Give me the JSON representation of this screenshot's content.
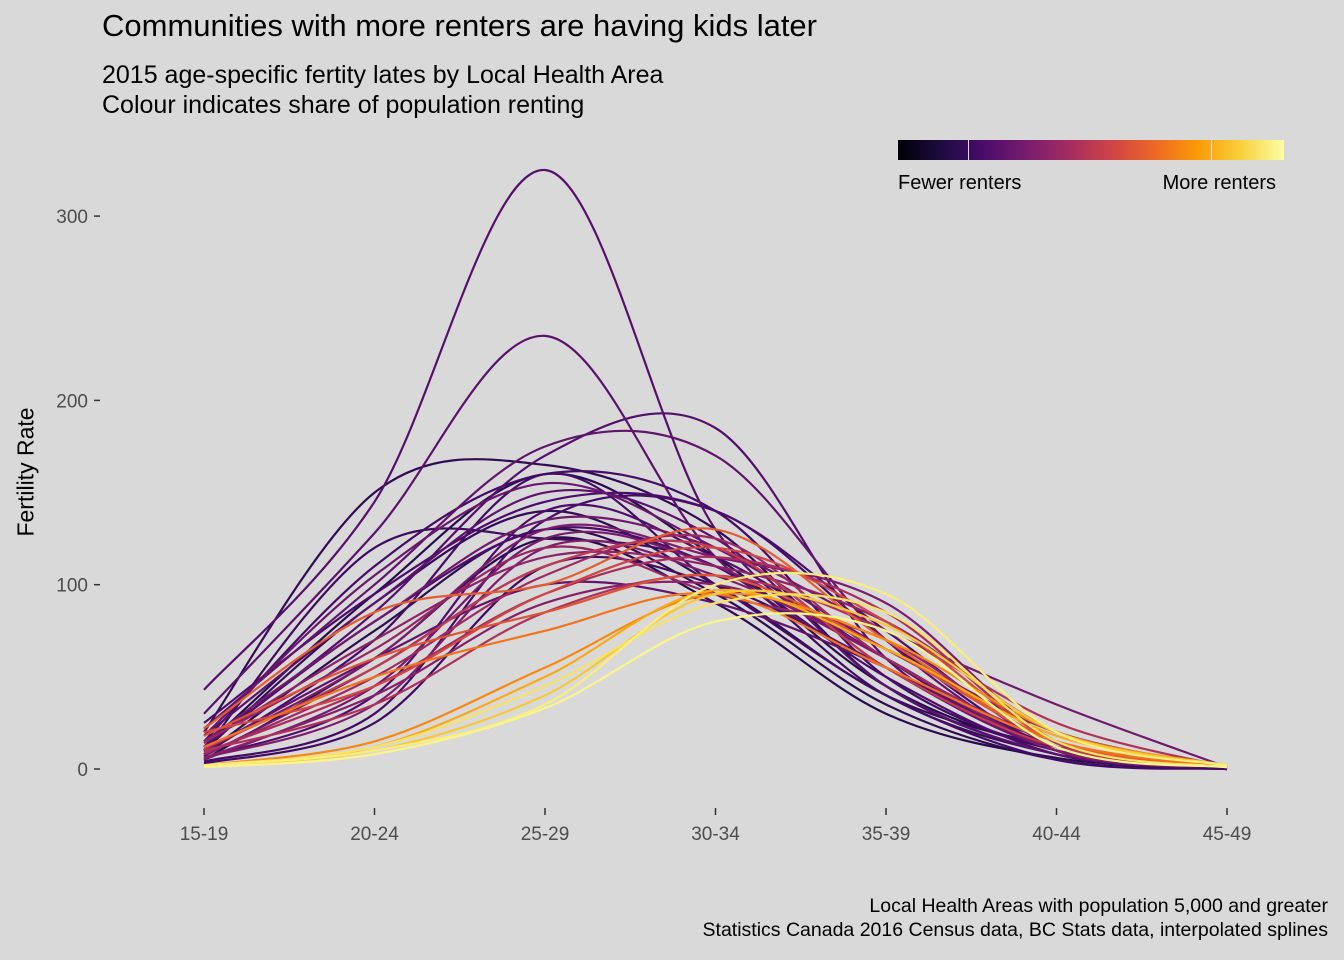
{
  "title": "Communities with more renters are having kids later",
  "subtitle_line1": "2015 age-specific fertity lates by Local Health Area",
  "subtitle_line2": "Colour indicates share of population renting",
  "caption_line1": "Local Health Areas with population 5,000 and greater",
  "caption_line2": "Statistics Canada 2016 Census data, BC Stats data, interpolated splines",
  "legend": {
    "low_label": "Fewer renters",
    "high_label": "More renters",
    "palette": [
      "#000004",
      "#1b0c41",
      "#4a0c6b",
      "#781c6d",
      "#a52c60",
      "#cf4446",
      "#ed6925",
      "#fb9b06",
      "#f7d13d",
      "#fcffa4"
    ]
  },
  "colors": {
    "background": "#d9d9d9",
    "tick_text": "#4d4d4d"
  },
  "chart_data": {
    "type": "line",
    "ylabel": "Fertility Rate",
    "xlabel": "",
    "categories": [
      "15-19",
      "20-24",
      "25-29",
      "30-34",
      "35-39",
      "40-44",
      "45-49"
    ],
    "yticks": [
      0,
      100,
      200,
      300
    ],
    "ylim": [
      -15,
      335
    ],
    "grid": false,
    "legend_position": "top-right",
    "series": [
      {
        "renter_share": 0.15,
        "values": [
          43,
          145,
          325,
          130,
          60,
          10,
          1
        ]
      },
      {
        "renter_share": 0.16,
        "values": [
          30,
          128,
          235,
          115,
          55,
          12,
          1
        ]
      },
      {
        "renter_share": 0.05,
        "values": [
          20,
          150,
          165,
          130,
          45,
          8,
          0
        ]
      },
      {
        "renter_share": 0.1,
        "values": [
          15,
          110,
          160,
          140,
          50,
          10,
          1
        ]
      },
      {
        "renter_share": 0.08,
        "values": [
          10,
          120,
          125,
          110,
          40,
          8,
          0
        ]
      },
      {
        "renter_share": 0.14,
        "values": [
          12,
          85,
          170,
          185,
          60,
          15,
          1
        ]
      },
      {
        "renter_share": 0.18,
        "values": [
          22,
          100,
          175,
          170,
          70,
          10,
          1
        ]
      },
      {
        "renter_share": 0.12,
        "values": [
          25,
          95,
          145,
          140,
          75,
          12,
          1
        ]
      },
      {
        "renter_share": 0.2,
        "values": [
          18,
          105,
          155,
          120,
          65,
          20,
          1
        ]
      },
      {
        "renter_share": 0.1,
        "values": [
          8,
          70,
          160,
          100,
          40,
          5,
          0
        ]
      },
      {
        "renter_share": 0.03,
        "values": [
          5,
          60,
          125,
          90,
          30,
          6,
          0
        ]
      },
      {
        "renter_share": 0.22,
        "values": [
          15,
          80,
          135,
          120,
          75,
          35,
          1
        ]
      },
      {
        "renter_share": 0.25,
        "values": [
          10,
          60,
          130,
          115,
          90,
          15,
          1
        ]
      },
      {
        "renter_share": 0.3,
        "values": [
          14,
          70,
          115,
          110,
          80,
          20,
          1
        ]
      },
      {
        "renter_share": 0.35,
        "values": [
          8,
          50,
          105,
          125,
          60,
          15,
          1
        ]
      },
      {
        "renter_share": 0.28,
        "values": [
          6,
          40,
          90,
          100,
          65,
          20,
          1
        ]
      },
      {
        "renter_share": 0.4,
        "values": [
          10,
          35,
          85,
          105,
          75,
          25,
          1
        ]
      },
      {
        "renter_share": 0.5,
        "values": [
          20,
          45,
          95,
          120,
          80,
          15,
          1
        ]
      },
      {
        "renter_share": 0.58,
        "values": [
          22,
          85,
          100,
          130,
          70,
          15,
          1
        ]
      },
      {
        "renter_share": 0.55,
        "values": [
          18,
          60,
          85,
          105,
          65,
          15,
          1
        ]
      },
      {
        "renter_share": 0.65,
        "values": [
          12,
          50,
          75,
          95,
          55,
          15,
          1
        ]
      },
      {
        "renter_share": 0.7,
        "values": [
          2,
          15,
          55,
          95,
          70,
          20,
          2
        ]
      },
      {
        "renter_share": 0.78,
        "values": [
          2,
          12,
          50,
          97,
          65,
          18,
          2
        ]
      },
      {
        "renter_share": 0.85,
        "values": [
          2,
          10,
          40,
          95,
          78,
          20,
          2
        ]
      },
      {
        "renter_share": 0.95,
        "values": [
          2,
          10,
          35,
          100,
          95,
          20,
          2
        ]
      },
      {
        "renter_share": 0.97,
        "values": [
          1,
          8,
          33,
          80,
          75,
          12,
          1
        ]
      },
      {
        "renter_share": 0.92,
        "values": [
          2,
          12,
          45,
          90,
          85,
          15,
          1
        ]
      },
      {
        "renter_share": 0.02,
        "values": [
          12,
          95,
          160,
          115,
          45,
          10,
          0
        ]
      },
      {
        "renter_share": 0.06,
        "values": [
          10,
          90,
          140,
          100,
          40,
          12,
          0
        ]
      },
      {
        "renter_share": 0.04,
        "values": [
          8,
          75,
          130,
          95,
          35,
          5,
          0
        ]
      },
      {
        "renter_share": 0.12,
        "values": [
          12,
          80,
          130,
          110,
          50,
          8,
          1
        ]
      },
      {
        "renter_share": 0.2,
        "values": [
          7,
          55,
          110,
          120,
          55,
          10,
          1
        ]
      },
      {
        "renter_share": 0.24,
        "values": [
          5,
          45,
          125,
          110,
          60,
          10,
          1
        ]
      },
      {
        "renter_share": 0.32,
        "values": [
          15,
          65,
          120,
          95,
          70,
          12,
          1
        ]
      },
      {
        "renter_share": 0.18,
        "values": [
          10,
          60,
          100,
          90,
          55,
          10,
          1
        ]
      },
      {
        "renter_share": 0.26,
        "values": [
          6,
          35,
          120,
          105,
          60,
          10,
          1
        ]
      },
      {
        "renter_share": 0.38,
        "values": [
          9,
          45,
          95,
          115,
          85,
          14,
          1
        ]
      },
      {
        "renter_share": 0.45,
        "values": [
          11,
          55,
          110,
          120,
          55,
          12,
          1
        ]
      },
      {
        "renter_share": 0.16,
        "values": [
          18,
          90,
          150,
          125,
          45,
          8,
          1
        ]
      },
      {
        "renter_share": 0.1,
        "values": [
          4,
          30,
          135,
          140,
          70,
          10,
          1
        ]
      },
      {
        "renter_share": 0.13,
        "values": [
          6,
          40,
          140,
          115,
          60,
          12,
          1
        ]
      },
      {
        "renter_share": 0.09,
        "values": [
          3,
          25,
          110,
          100,
          55,
          10,
          0
        ]
      }
    ]
  }
}
